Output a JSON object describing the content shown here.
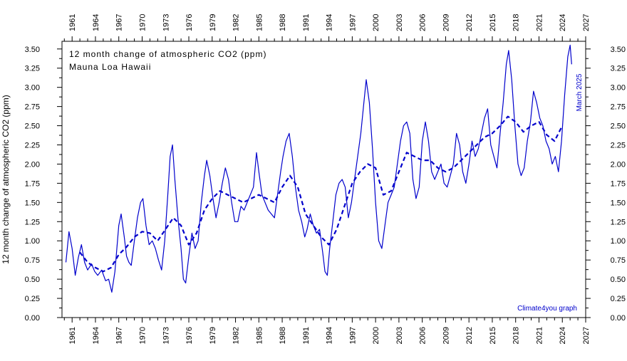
{
  "chart_data": {
    "type": "line",
    "title": "12 month change of atmospheric CO2 (ppm)",
    "subtitle": "Mauna Loa Hawaii",
    "ylabel": "12 month change of atmospheric CO2 (ppm)",
    "xlabel": "",
    "ylim": [
      0,
      3.6
    ],
    "xlim": [
      1959.7,
      2027
    ],
    "x_ticks": [
      1961,
      1964,
      1967,
      1970,
      1973,
      1976,
      1979,
      1982,
      1985,
      1988,
      1991,
      1994,
      1997,
      2000,
      2003,
      2006,
      2009,
      2012,
      2015,
      2018,
      2021,
      2024,
      2027
    ],
    "y_ticks": [
      "0.00",
      "0.25",
      "0.50",
      "0.75",
      "1.00",
      "1.25",
      "1.50",
      "1.75",
      "2.00",
      "2.25",
      "2.50",
      "2.75",
      "3.00",
      "3.25",
      "3.50"
    ],
    "grid": false,
    "colors": {
      "line": "#0000cc",
      "annotation": "#0000cc"
    },
    "annotations": {
      "last_date": "March 2025",
      "credit": "Climate4you graph"
    },
    "series": [
      {
        "style": "solid",
        "points": [
          [
            1960.2,
            0.72
          ],
          [
            1960.6,
            1.12
          ],
          [
            1961.0,
            0.9
          ],
          [
            1961.4,
            0.55
          ],
          [
            1961.8,
            0.78
          ],
          [
            1962.2,
            0.95
          ],
          [
            1962.6,
            0.72
          ],
          [
            1963.0,
            0.62
          ],
          [
            1963.5,
            0.7
          ],
          [
            1963.9,
            0.6
          ],
          [
            1964.3,
            0.55
          ],
          [
            1964.8,
            0.62
          ],
          [
            1965.3,
            0.48
          ],
          [
            1965.7,
            0.5
          ],
          [
            1966.1,
            0.33
          ],
          [
            1966.5,
            0.6
          ],
          [
            1967.0,
            1.2
          ],
          [
            1967.3,
            1.35
          ],
          [
            1967.7,
            1.05
          ],
          [
            1968.0,
            0.8
          ],
          [
            1968.3,
            0.72
          ],
          [
            1968.6,
            0.68
          ],
          [
            1969.0,
            1.0
          ],
          [
            1969.4,
            1.3
          ],
          [
            1969.8,
            1.5
          ],
          [
            1970.1,
            1.55
          ],
          [
            1970.5,
            1.2
          ],
          [
            1970.9,
            0.95
          ],
          [
            1971.3,
            1.0
          ],
          [
            1971.7,
            0.9
          ],
          [
            1972.1,
            0.75
          ],
          [
            1972.5,
            0.62
          ],
          [
            1972.9,
            1.0
          ],
          [
            1973.3,
            1.6
          ],
          [
            1973.6,
            2.1
          ],
          [
            1973.9,
            2.25
          ],
          [
            1974.2,
            1.8
          ],
          [
            1974.6,
            1.3
          ],
          [
            1975.0,
            0.9
          ],
          [
            1975.3,
            0.5
          ],
          [
            1975.6,
            0.45
          ],
          [
            1976.0,
            0.8
          ],
          [
            1976.4,
            1.1
          ],
          [
            1976.8,
            0.9
          ],
          [
            1977.2,
            1.0
          ],
          [
            1977.6,
            1.5
          ],
          [
            1978.0,
            1.85
          ],
          [
            1978.3,
            2.05
          ],
          [
            1978.7,
            1.85
          ],
          [
            1979.1,
            1.55
          ],
          [
            1979.5,
            1.3
          ],
          [
            1979.9,
            1.5
          ],
          [
            1980.3,
            1.75
          ],
          [
            1980.7,
            1.95
          ],
          [
            1981.1,
            1.8
          ],
          [
            1981.5,
            1.5
          ],
          [
            1981.9,
            1.25
          ],
          [
            1982.3,
            1.25
          ],
          [
            1982.7,
            1.45
          ],
          [
            1983.1,
            1.4
          ],
          [
            1983.5,
            1.5
          ],
          [
            1983.9,
            1.6
          ],
          [
            1984.3,
            1.7
          ],
          [
            1984.7,
            2.15
          ],
          [
            1985.0,
            1.9
          ],
          [
            1985.4,
            1.6
          ],
          [
            1985.8,
            1.5
          ],
          [
            1986.2,
            1.4
          ],
          [
            1986.6,
            1.35
          ],
          [
            1987.0,
            1.3
          ],
          [
            1987.4,
            1.6
          ],
          [
            1987.8,
            1.9
          ],
          [
            1988.1,
            2.1
          ],
          [
            1988.5,
            2.3
          ],
          [
            1988.9,
            2.4
          ],
          [
            1989.3,
            2.1
          ],
          [
            1989.7,
            1.7
          ],
          [
            1990.1,
            1.4
          ],
          [
            1990.5,
            1.25
          ],
          [
            1990.9,
            1.05
          ],
          [
            1991.2,
            1.15
          ],
          [
            1991.6,
            1.35
          ],
          [
            1992.0,
            1.2
          ],
          [
            1992.4,
            1.1
          ],
          [
            1992.8,
            1.15
          ],
          [
            1993.2,
            0.85
          ],
          [
            1993.5,
            0.6
          ],
          [
            1993.8,
            0.55
          ],
          [
            1994.1,
            0.9
          ],
          [
            1994.5,
            1.25
          ],
          [
            1994.9,
            1.6
          ],
          [
            1995.3,
            1.75
          ],
          [
            1995.7,
            1.8
          ],
          [
            1996.1,
            1.7
          ],
          [
            1996.5,
            1.3
          ],
          [
            1996.9,
            1.5
          ],
          [
            1997.3,
            1.8
          ],
          [
            1997.7,
            2.1
          ],
          [
            1998.1,
            2.4
          ],
          [
            1998.5,
            2.8
          ],
          [
            1998.8,
            3.1
          ],
          [
            1999.2,
            2.8
          ],
          [
            1999.6,
            2.2
          ],
          [
            2000.0,
            1.5
          ],
          [
            2000.4,
            1.0
          ],
          [
            2000.8,
            0.9
          ],
          [
            2001.2,
            1.2
          ],
          [
            2001.6,
            1.5
          ],
          [
            2002.0,
            1.6
          ],
          [
            2002.4,
            1.7
          ],
          [
            2002.8,
            2.0
          ],
          [
            2003.2,
            2.3
          ],
          [
            2003.6,
            2.5
          ],
          [
            2004.0,
            2.55
          ],
          [
            2004.4,
            2.4
          ],
          [
            2004.8,
            1.8
          ],
          [
            2005.2,
            1.55
          ],
          [
            2005.6,
            1.7
          ],
          [
            2006.0,
            2.3
          ],
          [
            2006.4,
            2.55
          ],
          [
            2006.8,
            2.3
          ],
          [
            2007.2,
            1.9
          ],
          [
            2007.6,
            1.8
          ],
          [
            2008.0,
            1.9
          ],
          [
            2008.4,
            2.0
          ],
          [
            2008.8,
            1.75
          ],
          [
            2009.2,
            1.7
          ],
          [
            2009.6,
            1.85
          ],
          [
            2010.0,
            2.0
          ],
          [
            2010.4,
            2.4
          ],
          [
            2010.8,
            2.25
          ],
          [
            2011.2,
            1.9
          ],
          [
            2011.6,
            1.75
          ],
          [
            2012.0,
            2.0
          ],
          [
            2012.4,
            2.3
          ],
          [
            2012.8,
            2.1
          ],
          [
            2013.2,
            2.2
          ],
          [
            2013.6,
            2.4
          ],
          [
            2014.0,
            2.6
          ],
          [
            2014.4,
            2.72
          ],
          [
            2014.8,
            2.25
          ],
          [
            2015.2,
            2.1
          ],
          [
            2015.6,
            1.95
          ],
          [
            2016.0,
            2.4
          ],
          [
            2016.4,
            2.8
          ],
          [
            2016.8,
            3.3
          ],
          [
            2017.1,
            3.48
          ],
          [
            2017.5,
            3.1
          ],
          [
            2017.9,
            2.5
          ],
          [
            2018.3,
            2.0
          ],
          [
            2018.7,
            1.85
          ],
          [
            2019.1,
            1.95
          ],
          [
            2019.5,
            2.3
          ],
          [
            2019.9,
            2.55
          ],
          [
            2020.3,
            2.95
          ],
          [
            2020.7,
            2.8
          ],
          [
            2021.1,
            2.6
          ],
          [
            2021.5,
            2.5
          ],
          [
            2021.9,
            2.3
          ],
          [
            2022.3,
            2.2
          ],
          [
            2022.7,
            2.0
          ],
          [
            2023.1,
            2.1
          ],
          [
            2023.5,
            1.9
          ],
          [
            2023.9,
            2.3
          ],
          [
            2024.3,
            2.9
          ],
          [
            2024.7,
            3.4
          ],
          [
            2025.0,
            3.55
          ],
          [
            2025.2,
            3.3
          ]
        ]
      },
      {
        "style": "dashed",
        "points": [
          [
            1962.0,
            0.85
          ],
          [
            1963.0,
            0.72
          ],
          [
            1964.0,
            0.65
          ],
          [
            1965.0,
            0.6
          ],
          [
            1966.0,
            0.65
          ],
          [
            1967.0,
            0.82
          ],
          [
            1968.0,
            0.92
          ],
          [
            1969.0,
            1.05
          ],
          [
            1970.0,
            1.12
          ],
          [
            1971.0,
            1.1
          ],
          [
            1972.0,
            1.0
          ],
          [
            1973.0,
            1.15
          ],
          [
            1974.0,
            1.3
          ],
          [
            1975.0,
            1.2
          ],
          [
            1976.0,
            0.95
          ],
          [
            1977.0,
            1.1
          ],
          [
            1978.0,
            1.4
          ],
          [
            1979.0,
            1.55
          ],
          [
            1980.0,
            1.65
          ],
          [
            1981.0,
            1.6
          ],
          [
            1982.0,
            1.55
          ],
          [
            1983.0,
            1.5
          ],
          [
            1984.0,
            1.55
          ],
          [
            1985.0,
            1.6
          ],
          [
            1986.0,
            1.55
          ],
          [
            1987.0,
            1.5
          ],
          [
            1988.0,
            1.7
          ],
          [
            1989.0,
            1.85
          ],
          [
            1990.0,
            1.7
          ],
          [
            1991.0,
            1.35
          ],
          [
            1992.0,
            1.2
          ],
          [
            1993.0,
            1.05
          ],
          [
            1994.0,
            0.95
          ],
          [
            1995.0,
            1.15
          ],
          [
            1996.0,
            1.45
          ],
          [
            1997.0,
            1.75
          ],
          [
            1998.0,
            1.9
          ],
          [
            1999.0,
            2.0
          ],
          [
            2000.0,
            1.95
          ],
          [
            2001.0,
            1.6
          ],
          [
            2002.0,
            1.65
          ],
          [
            2003.0,
            1.9
          ],
          [
            2004.0,
            2.15
          ],
          [
            2005.0,
            2.1
          ],
          [
            2006.0,
            2.05
          ],
          [
            2007.0,
            2.05
          ],
          [
            2008.0,
            1.95
          ],
          [
            2009.0,
            1.9
          ],
          [
            2010.0,
            1.95
          ],
          [
            2011.0,
            2.05
          ],
          [
            2012.0,
            2.15
          ],
          [
            2013.0,
            2.25
          ],
          [
            2014.0,
            2.35
          ],
          [
            2015.0,
            2.4
          ],
          [
            2016.0,
            2.5
          ],
          [
            2017.0,
            2.62
          ],
          [
            2018.0,
            2.55
          ],
          [
            2019.0,
            2.42
          ],
          [
            2020.0,
            2.5
          ],
          [
            2021.0,
            2.55
          ],
          [
            2022.0,
            2.38
          ],
          [
            2023.0,
            2.3
          ],
          [
            2024.0,
            2.5
          ]
        ]
      }
    ]
  }
}
